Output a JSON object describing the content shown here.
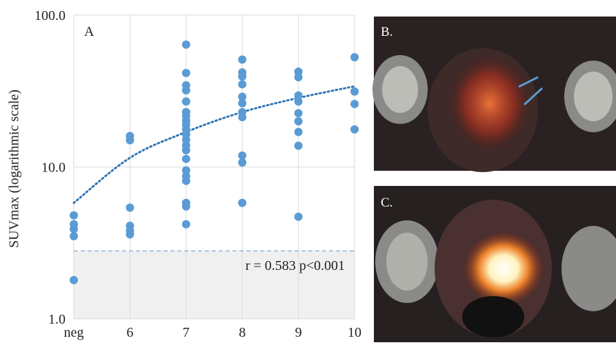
{
  "chart_data": {
    "type": "scatter",
    "panel_label": "A",
    "y_label": "SUVmax (logarithmic scale)",
    "annotation": "r = 0.583 p<0.001",
    "categories": [
      "neg",
      "6",
      "7",
      "8",
      "9",
      "10"
    ],
    "values": [
      [
        4.8,
        4.2,
        3.9,
        3.5,
        1.8
      ],
      [
        16,
        15,
        5.4,
        4.1,
        3.8,
        3.6
      ],
      [
        64,
        41.6,
        34.5,
        32,
        27,
        23,
        21.7,
        20.2,
        19,
        17.7,
        16.4,
        15.1,
        13.9,
        12.9,
        11.3,
        9.5,
        8.7,
        8.1,
        5.8,
        5.5,
        4.2
      ],
      [
        51,
        42,
        39.5,
        35,
        29,
        26.3,
        23,
        21.3,
        11.9,
        10.7,
        5.8
      ],
      [
        42.5,
        39,
        29.6,
        27,
        22.6,
        20,
        17,
        13.8,
        4.7
      ],
      [
        52.8,
        31.4,
        26,
        17.7
      ]
    ],
    "color": "#5b9bd5",
    "trendline": {
      "values": [
        5.8,
        11.5,
        17,
        23,
        28.5,
        34
      ],
      "color": "#2e75b6"
    },
    "threshold": 2.8,
    "log_scale": true,
    "ylim": [
      1,
      100
    ],
    "yticks": [
      {
        "value": 1,
        "label": "1.0"
      },
      {
        "value": 10,
        "label": "10.0"
      },
      {
        "value": 100,
        "label": "100.0"
      }
    ],
    "grid": true
  },
  "images": [
    {
      "label": "B."
    },
    {
      "label": "C."
    }
  ]
}
